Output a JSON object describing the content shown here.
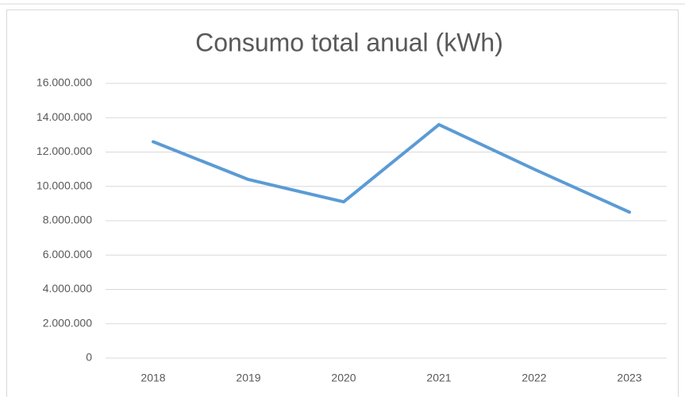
{
  "chart_data": {
    "type": "line",
    "title": "Consumo total anual (kWh)",
    "categories": [
      "2018",
      "2019",
      "2020",
      "2021",
      "2022",
      "2023"
    ],
    "series": [
      {
        "name": "Consumo",
        "color": "#5b9bd5",
        "values": [
          12600000,
          10400000,
          9100000,
          13600000,
          11000000,
          8500000
        ]
      }
    ],
    "ylim": [
      0,
      16000000
    ],
    "yticks": [
      0,
      {
        "value": 2000000,
        "label": "2.000.000"
      },
      {
        "value": 4000000,
        "label": "4.000.000"
      },
      {
        "value": 6000000,
        "label": "6.000.000"
      },
      {
        "value": 8000000,
        "label": "8.000.000"
      },
      {
        "value": 10000000,
        "label": "10.000.000"
      },
      {
        "value": 12000000,
        "label": "12.000.000"
      },
      {
        "value": 14000000,
        "label": "14.000.000"
      },
      {
        "value": 16000000,
        "label": "16.000.000"
      }
    ],
    "grid": true
  }
}
